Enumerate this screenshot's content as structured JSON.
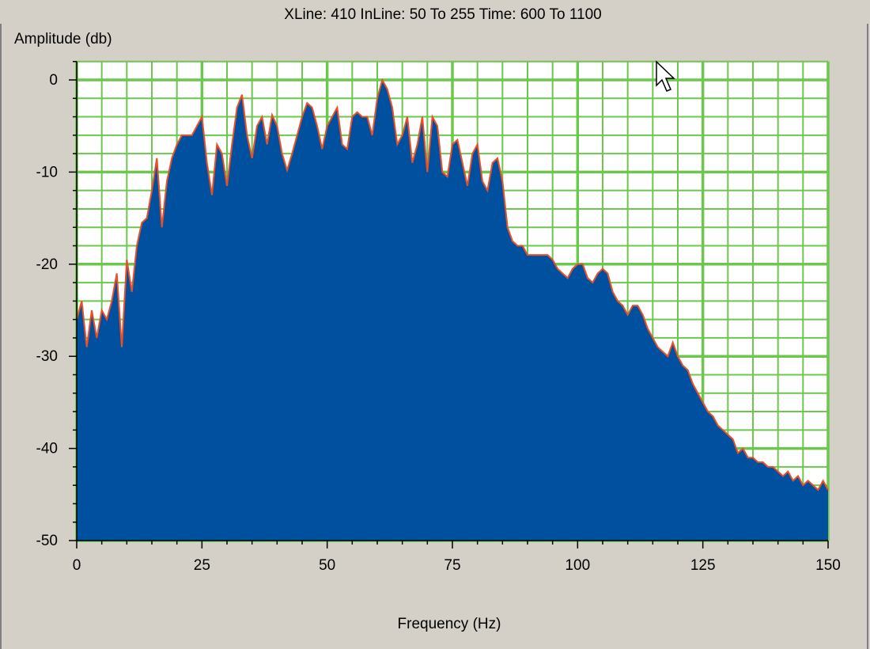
{
  "chart_data": {
    "type": "area",
    "title": "XLine:  410 InLine: 50 To 255 Time: 600 To 1100",
    "y_label": "Amplitude (db)",
    "x_label": "Frequency (Hz)",
    "x": [
      0,
      1,
      2,
      3,
      4,
      5,
      6,
      7,
      8,
      9,
      10,
      11,
      12,
      13,
      14,
      15,
      16,
      17,
      18,
      19,
      20,
      21,
      22,
      23,
      24,
      25,
      26,
      27,
      28,
      29,
      30,
      31,
      32,
      33,
      34,
      35,
      36,
      37,
      38,
      39,
      40,
      41,
      42,
      43,
      44,
      45,
      46,
      47,
      48,
      49,
      50,
      51,
      52,
      53,
      54,
      55,
      56,
      57,
      58,
      59,
      60,
      61,
      62,
      63,
      64,
      65,
      66,
      67,
      68,
      69,
      70,
      71,
      72,
      73,
      74,
      75,
      76,
      77,
      78,
      79,
      80,
      81,
      82,
      83,
      84,
      85,
      86,
      87,
      88,
      89,
      90,
      91,
      92,
      93,
      94,
      95,
      96,
      97,
      98,
      99,
      100,
      101,
      102,
      103,
      104,
      105,
      106,
      107,
      108,
      109,
      110,
      111,
      112,
      113,
      114,
      115,
      116,
      117,
      118,
      119,
      120,
      121,
      122,
      123,
      124,
      125,
      126,
      127,
      128,
      129,
      130,
      131,
      132,
      133,
      134,
      135,
      136,
      137,
      138,
      139,
      140,
      141,
      142,
      143,
      144,
      145,
      146,
      147,
      148,
      149,
      150
    ],
    "values": [
      -26,
      -24,
      -29,
      -25,
      -28,
      -25,
      -26,
      -24,
      -21,
      -29,
      -19.5,
      -23,
      -18,
      -15.5,
      -15,
      -12,
      -8.5,
      -16,
      -11,
      -8.5,
      -7,
      -6,
      -6,
      -6,
      -5,
      -4,
      -9,
      -12.5,
      -7,
      -8,
      -11.5,
      -7,
      -3,
      -1.6,
      -6,
      -8.5,
      -5,
      -4,
      -7,
      -3.8,
      -5,
      -8,
      -9.8,
      -8,
      -6,
      -4,
      -2.5,
      -3,
      -5,
      -7.5,
      -5,
      -4,
      -3,
      -7,
      -7.5,
      -4,
      -3.5,
      -4,
      -4,
      -6,
      -2,
      0,
      -1,
      -3,
      -7,
      -6,
      -4,
      -9,
      -7,
      -4,
      -10,
      -4,
      -5,
      -10,
      -10.5,
      -7,
      -6.5,
      -9,
      -11.5,
      -8,
      -7,
      -11,
      -12,
      -9,
      -8.5,
      -11,
      -16,
      -17.5,
      -18,
      -18,
      -19,
      -19,
      -19,
      -19,
      -19,
      -19.5,
      -20.5,
      -21,
      -21.5,
      -20.5,
      -20,
      -20,
      -21.5,
      -22,
      -21,
      -20.5,
      -21,
      -23,
      -24,
      -24.5,
      -25.5,
      -24.5,
      -24.5,
      -25.5,
      -27,
      -28,
      -29,
      -29.5,
      -30,
      -28.5,
      -30,
      -31,
      -31.5,
      -33,
      -34,
      -35,
      -36,
      -36.5,
      -37.5,
      -38,
      -38.5,
      -39,
      -40.5,
      -40,
      -41,
      -41,
      -41.5,
      -41.5,
      -42,
      -42,
      -42.5,
      -43,
      -42.5,
      -43.5,
      -43,
      -44,
      -43.5,
      -44,
      -44.5,
      -43.5,
      -44.5
    ],
    "color": "#0050a0",
    "line_color": "#e8502a",
    "xlim": [
      0,
      150
    ],
    "ylim": [
      -50,
      2
    ],
    "xticks": [
      0,
      25,
      50,
      75,
      100,
      125,
      150
    ],
    "yticks": [
      0,
      -10,
      -20,
      -30,
      -40,
      -50
    ],
    "xminorticks": [
      5,
      10,
      15,
      20,
      30,
      35,
      40,
      45,
      55,
      60,
      65,
      70,
      80,
      85,
      90,
      95,
      105,
      110,
      115,
      120,
      130,
      135,
      140,
      145
    ],
    "yminorticks": [
      2,
      -2,
      -4,
      -6,
      -8,
      -12,
      -14,
      -16,
      -18,
      -22,
      -24,
      -26,
      -28,
      -32,
      -34,
      -36,
      -38,
      -42,
      -44,
      -46,
      -48
    ],
    "grid": true,
    "grid_color": "#6cc84c"
  }
}
